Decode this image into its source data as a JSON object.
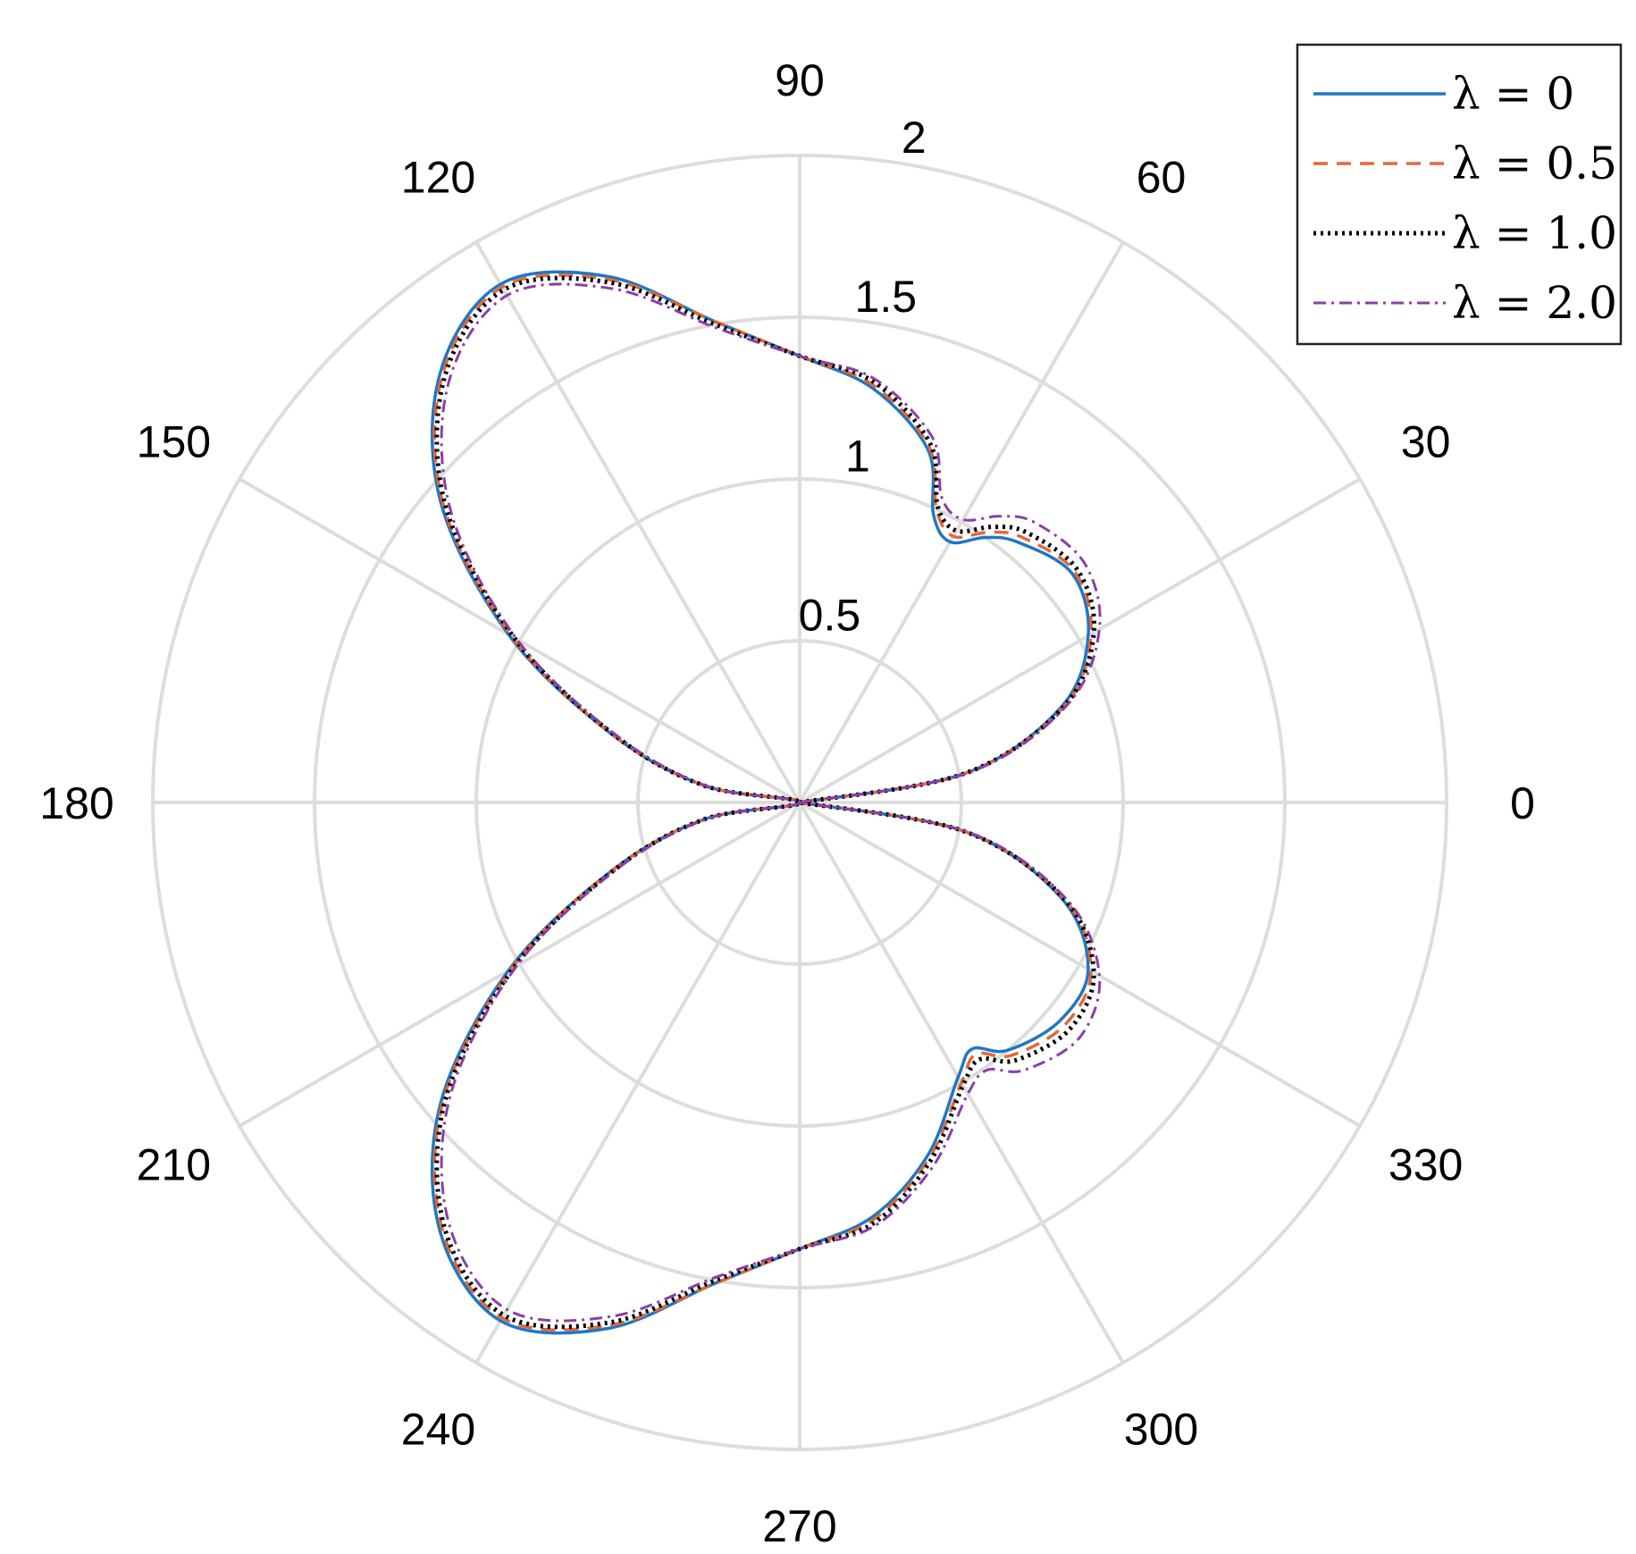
{
  "chart_data": {
    "type": "polar-line",
    "angle_unit": "degrees",
    "theta_ticks": [
      "0",
      "30",
      "60",
      "90",
      "120",
      "150",
      "180",
      "210",
      "240",
      "270",
      "300",
      "330"
    ],
    "r_ticks": [
      "0.5",
      "1",
      "1.5",
      "2"
    ],
    "rlim": [
      0,
      2
    ],
    "grid": true,
    "legend_position": "top-right",
    "colors": {
      "grid": "#dddddd",
      "lambda_0": "#1f77c4",
      "lambda_0_5": "#e06a3b",
      "lambda_1_0": "#000000",
      "lambda_2_0": "#8a3fa8"
    },
    "theta": [
      0,
      10,
      20,
      30,
      40,
      50,
      55,
      60,
      65,
      70,
      80,
      90,
      100,
      110,
      120,
      130,
      140,
      150,
      160,
      170,
      180,
      190,
      200,
      210,
      220,
      230,
      240,
      250,
      260,
      270,
      280,
      290,
      300,
      305,
      310,
      320,
      330,
      340,
      350,
      360
    ],
    "series": [
      {
        "name": "λ = 0",
        "line_style": "solid",
        "r": [
          0,
          0.52,
          0.86,
          1.03,
          1.1,
          1.05,
          1.0,
          0.93,
          0.98,
          1.16,
          1.3,
          1.38,
          1.51,
          1.73,
          1.85,
          1.73,
          1.45,
          1.04,
          0.62,
          0.3,
          0,
          0.3,
          0.62,
          1.04,
          1.45,
          1.73,
          1.85,
          1.73,
          1.51,
          1.38,
          1.3,
          1.16,
          0.98,
          0.93,
          1.0,
          1.05,
          1.03,
          0.86,
          0.52,
          0
        ]
      },
      {
        "name": "λ = 0.5",
        "line_style": "dashed",
        "r": [
          0,
          0.52,
          0.87,
          1.04,
          1.11,
          1.07,
          1.02,
          0.95,
          1.0,
          1.17,
          1.31,
          1.38,
          1.51,
          1.72,
          1.84,
          1.72,
          1.44,
          1.03,
          0.62,
          0.3,
          0,
          0.3,
          0.62,
          1.03,
          1.44,
          1.72,
          1.84,
          1.72,
          1.51,
          1.38,
          1.31,
          1.17,
          1.0,
          0.95,
          1.02,
          1.07,
          1.04,
          0.87,
          0.52,
          0
        ]
      },
      {
        "name": "λ = 1.0",
        "line_style": "dotted",
        "r": [
          0,
          0.52,
          0.87,
          1.05,
          1.12,
          1.09,
          1.04,
          0.97,
          1.01,
          1.18,
          1.32,
          1.38,
          1.5,
          1.71,
          1.83,
          1.71,
          1.43,
          1.02,
          0.61,
          0.3,
          0,
          0.3,
          0.61,
          1.02,
          1.43,
          1.71,
          1.83,
          1.71,
          1.5,
          1.38,
          1.32,
          1.18,
          1.01,
          0.97,
          1.04,
          1.09,
          1.05,
          0.87,
          0.52,
          0
        ]
      },
      {
        "name": "λ = 2.0",
        "line_style": "dash-dot",
        "r": [
          0,
          0.53,
          0.88,
          1.07,
          1.15,
          1.13,
          1.08,
          1.01,
          1.04,
          1.2,
          1.33,
          1.38,
          1.49,
          1.69,
          1.81,
          1.69,
          1.41,
          1.01,
          0.6,
          0.29,
          0,
          0.29,
          0.6,
          1.01,
          1.41,
          1.69,
          1.81,
          1.69,
          1.49,
          1.38,
          1.33,
          1.2,
          1.04,
          1.01,
          1.08,
          1.13,
          1.07,
          0.88,
          0.53,
          0
        ]
      }
    ]
  }
}
